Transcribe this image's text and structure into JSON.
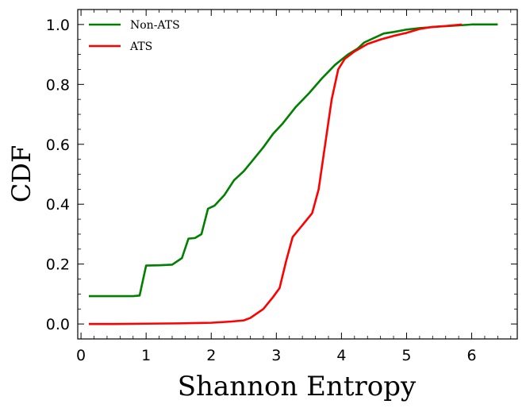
{
  "chart_data": {
    "type": "line",
    "title": "",
    "xlabel": "Shannon Entropy",
    "ylabel": "CDF",
    "xlim": [
      -0.05,
      6.7
    ],
    "ylim": [
      -0.05,
      1.05
    ],
    "xticks": [
      0,
      1,
      2,
      3,
      4,
      5,
      6
    ],
    "xtick_labels": [
      "0",
      "1",
      "2",
      "3",
      "4",
      "5",
      "6"
    ],
    "yticks": [
      0.0,
      0.2,
      0.4,
      0.6,
      0.8,
      1.0
    ],
    "ytick_labels": [
      "0.0",
      "0.2",
      "0.4",
      "0.6",
      "0.8",
      "1.0"
    ],
    "legend_position": "top-left",
    "grid": false,
    "series": [
      {
        "name": "Non-ATS",
        "color": "#007f00",
        "x": [
          0.12,
          0.5,
          0.8,
          0.9,
          1.0,
          1.2,
          1.4,
          1.55,
          1.65,
          1.75,
          1.85,
          1.95,
          2.05,
          2.2,
          2.35,
          2.5,
          2.65,
          2.8,
          2.95,
          3.1,
          3.3,
          3.5,
          3.7,
          3.9,
          4.1,
          4.25,
          4.35,
          4.5,
          4.65,
          4.8,
          5.0,
          5.2,
          5.5,
          5.8,
          6.0,
          6.4
        ],
        "y": [
          0.093,
          0.093,
          0.093,
          0.095,
          0.195,
          0.196,
          0.198,
          0.22,
          0.285,
          0.287,
          0.3,
          0.385,
          0.395,
          0.43,
          0.48,
          0.51,
          0.55,
          0.59,
          0.635,
          0.67,
          0.725,
          0.77,
          0.82,
          0.865,
          0.9,
          0.92,
          0.94,
          0.955,
          0.97,
          0.975,
          0.983,
          0.988,
          0.993,
          0.997,
          1.0,
          1.0
        ]
      },
      {
        "name": "ATS",
        "color": "#ff0000",
        "x": [
          0.12,
          0.5,
          1.0,
          1.5,
          2.0,
          2.3,
          2.5,
          2.6,
          2.7,
          2.8,
          2.95,
          3.05,
          3.15,
          3.25,
          3.4,
          3.55,
          3.65,
          3.75,
          3.85,
          3.95,
          4.05,
          4.2,
          4.4,
          4.6,
          4.8,
          5.0,
          5.2,
          5.4,
          5.6,
          5.85
        ],
        "y": [
          0.0,
          0.0,
          0.001,
          0.002,
          0.004,
          0.008,
          0.012,
          0.02,
          0.035,
          0.05,
          0.09,
          0.12,
          0.21,
          0.29,
          0.33,
          0.37,
          0.45,
          0.6,
          0.75,
          0.85,
          0.885,
          0.91,
          0.935,
          0.95,
          0.962,
          0.972,
          0.985,
          0.992,
          0.995,
          1.0
        ]
      }
    ]
  }
}
